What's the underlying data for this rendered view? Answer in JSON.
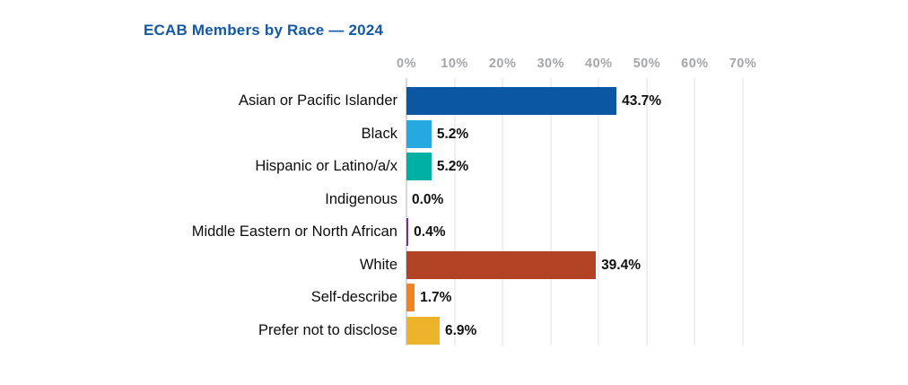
{
  "chart_data": {
    "type": "bar",
    "orientation": "horizontal",
    "title": "ECAB Members by Race — 2024",
    "categories": [
      "Asian or Pacific Islander",
      "Black",
      "Hispanic or Latino/a/x",
      "Indigenous",
      "Middle Eastern or North African",
      "White",
      "Self-describe",
      "Prefer not to disclose"
    ],
    "values": [
      43.7,
      5.2,
      5.2,
      0.0,
      0.4,
      39.4,
      1.7,
      6.9
    ],
    "value_labels": [
      "43.7%",
      "5.2%",
      "5.2%",
      "0.0%",
      "0.4%",
      "39.4%",
      "1.7%",
      "6.9%"
    ],
    "bar_colors": [
      "#0b57a4",
      "#25a9e0",
      "#00b0a4",
      "#999999",
      "#7a2e8d",
      "#b24224",
      "#f58220",
      "#ecb32b"
    ],
    "x_tick_labels": [
      "0%",
      "10%",
      "20%",
      "30%",
      "40%",
      "50%",
      "60%",
      "70%"
    ],
    "xlim": [
      0,
      70
    ],
    "grid": true,
    "legend": "none"
  },
  "colors": {
    "title": "#1459a6",
    "tick_text": "#a4a6aa",
    "gridline": "#f0f0f2",
    "zero_line": "#d8d8dc",
    "value_text": "#111111",
    "background": "#ffffff"
  }
}
